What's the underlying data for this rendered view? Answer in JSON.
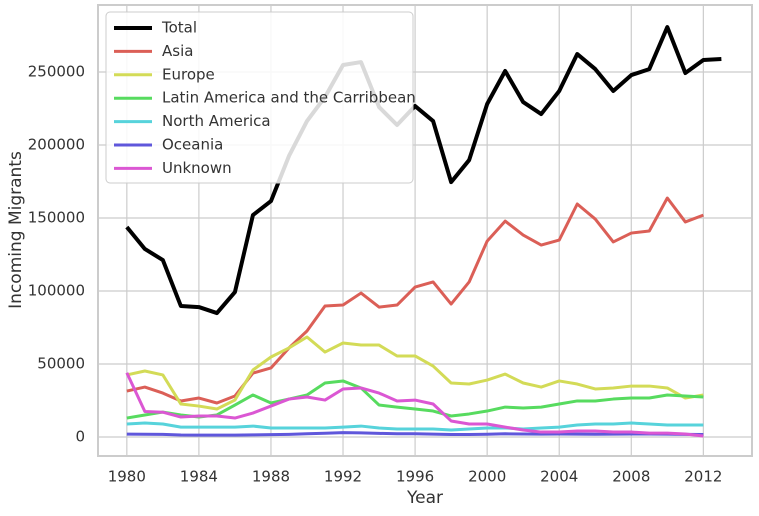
{
  "chart_data": {
    "type": "line",
    "x_label": "Year",
    "y_label": "Incoming Migrants",
    "x": [
      1980,
      1981,
      1982,
      1983,
      1984,
      1985,
      1986,
      1987,
      1988,
      1989,
      1990,
      1991,
      1992,
      1993,
      1994,
      1995,
      1996,
      1997,
      1998,
      1999,
      2000,
      2001,
      2002,
      2003,
      2004,
      2005,
      2006,
      2007,
      2008,
      2009,
      2010,
      2011,
      2012,
      2013
    ],
    "xlim": [
      1978.4,
      2014.7
    ],
    "xticks": [
      1980,
      1984,
      1988,
      1992,
      1996,
      2000,
      2004,
      2008,
      2012
    ],
    "ylim": [
      -13000,
      295900
    ],
    "yticks": [
      0,
      50000,
      100000,
      150000,
      200000,
      250000
    ],
    "grid": true,
    "legend": "upper left",
    "series": [
      {
        "name": "Total",
        "color": "#000000",
        "values": [
          143800,
          128800,
          121200,
          89700,
          89000,
          84900,
          99300,
          152000,
          161600,
          192500,
          216400,
          232900,
          254800,
          256800,
          226000,
          213700,
          226700,
          216400,
          174600,
          189700,
          228100,
          250700,
          229400,
          221200,
          237000,
          262300,
          252000,
          237000,
          247900,
          252000,
          280800,
          249300,
          258200,
          258900
        ]
      },
      {
        "name": "Asia",
        "color": "#db5f57",
        "values": [
          31500,
          34200,
          30100,
          24700,
          26700,
          23300,
          28100,
          43800,
          47300,
          61000,
          72600,
          89700,
          90400,
          98600,
          89000,
          90400,
          102700,
          106200,
          91100,
          106200,
          134200,
          147900,
          138300,
          131500,
          134900,
          159600,
          149300,
          133600,
          139700,
          141100,
          163700,
          147300,
          152000,
          null
        ]
      },
      {
        "name": "Europe",
        "color": "#d3db57",
        "values": [
          42500,
          45200,
          42500,
          22600,
          21200,
          19200,
          25300,
          45900,
          54800,
          61000,
          68500,
          58200,
          64400,
          63000,
          63000,
          55500,
          55500,
          48600,
          37000,
          36300,
          39000,
          43100,
          37000,
          34200,
          38400,
          36300,
          32900,
          33600,
          34900,
          34900,
          33600,
          26700,
          28800,
          null
        ]
      },
      {
        "name": "Latin America and the Carribbean",
        "color": "#57db5f",
        "values": [
          13000,
          15100,
          17100,
          15100,
          13700,
          15100,
          21900,
          28800,
          23300,
          26000,
          28800,
          37000,
          38400,
          33600,
          21900,
          20500,
          19200,
          17800,
          14400,
          15800,
          17800,
          20500,
          19900,
          20500,
          22600,
          24700,
          24700,
          26000,
          26700,
          26700,
          28800,
          28100,
          27400,
          null
        ]
      },
      {
        "name": "North America",
        "color": "#57d3db",
        "values": [
          8900,
          9600,
          8900,
          6800,
          6800,
          6800,
          6800,
          7500,
          6200,
          6200,
          6200,
          6200,
          6800,
          7500,
          6200,
          5500,
          5500,
          5500,
          4800,
          5500,
          6200,
          6200,
          5500,
          6200,
          6800,
          8200,
          8900,
          8900,
          9600,
          8900,
          8200,
          8200,
          8200,
          null
        ]
      },
      {
        "name": "Oceania",
        "color": "#5f57db",
        "values": [
          2000,
          1900,
          1800,
          1400,
          1300,
          1300,
          1300,
          1500,
          1600,
          1800,
          2200,
          2600,
          3000,
          2800,
          2500,
          2200,
          2200,
          2000,
          1700,
          1700,
          1900,
          2200,
          2100,
          2000,
          2100,
          2000,
          1900,
          2000,
          2100,
          2100,
          2000,
          1800,
          1700,
          null
        ]
      },
      {
        "name": "Unknown",
        "color": "#db57d3",
        "values": [
          44000,
          17500,
          17000,
          13700,
          14400,
          14400,
          13000,
          16400,
          21200,
          26000,
          27400,
          25300,
          32900,
          33600,
          30100,
          24700,
          25300,
          22600,
          11000,
          8900,
          8900,
          6800,
          4800,
          3400,
          3400,
          4100,
          4100,
          3400,
          3400,
          2700,
          2700,
          2100,
          700,
          null
        ]
      }
    ]
  }
}
